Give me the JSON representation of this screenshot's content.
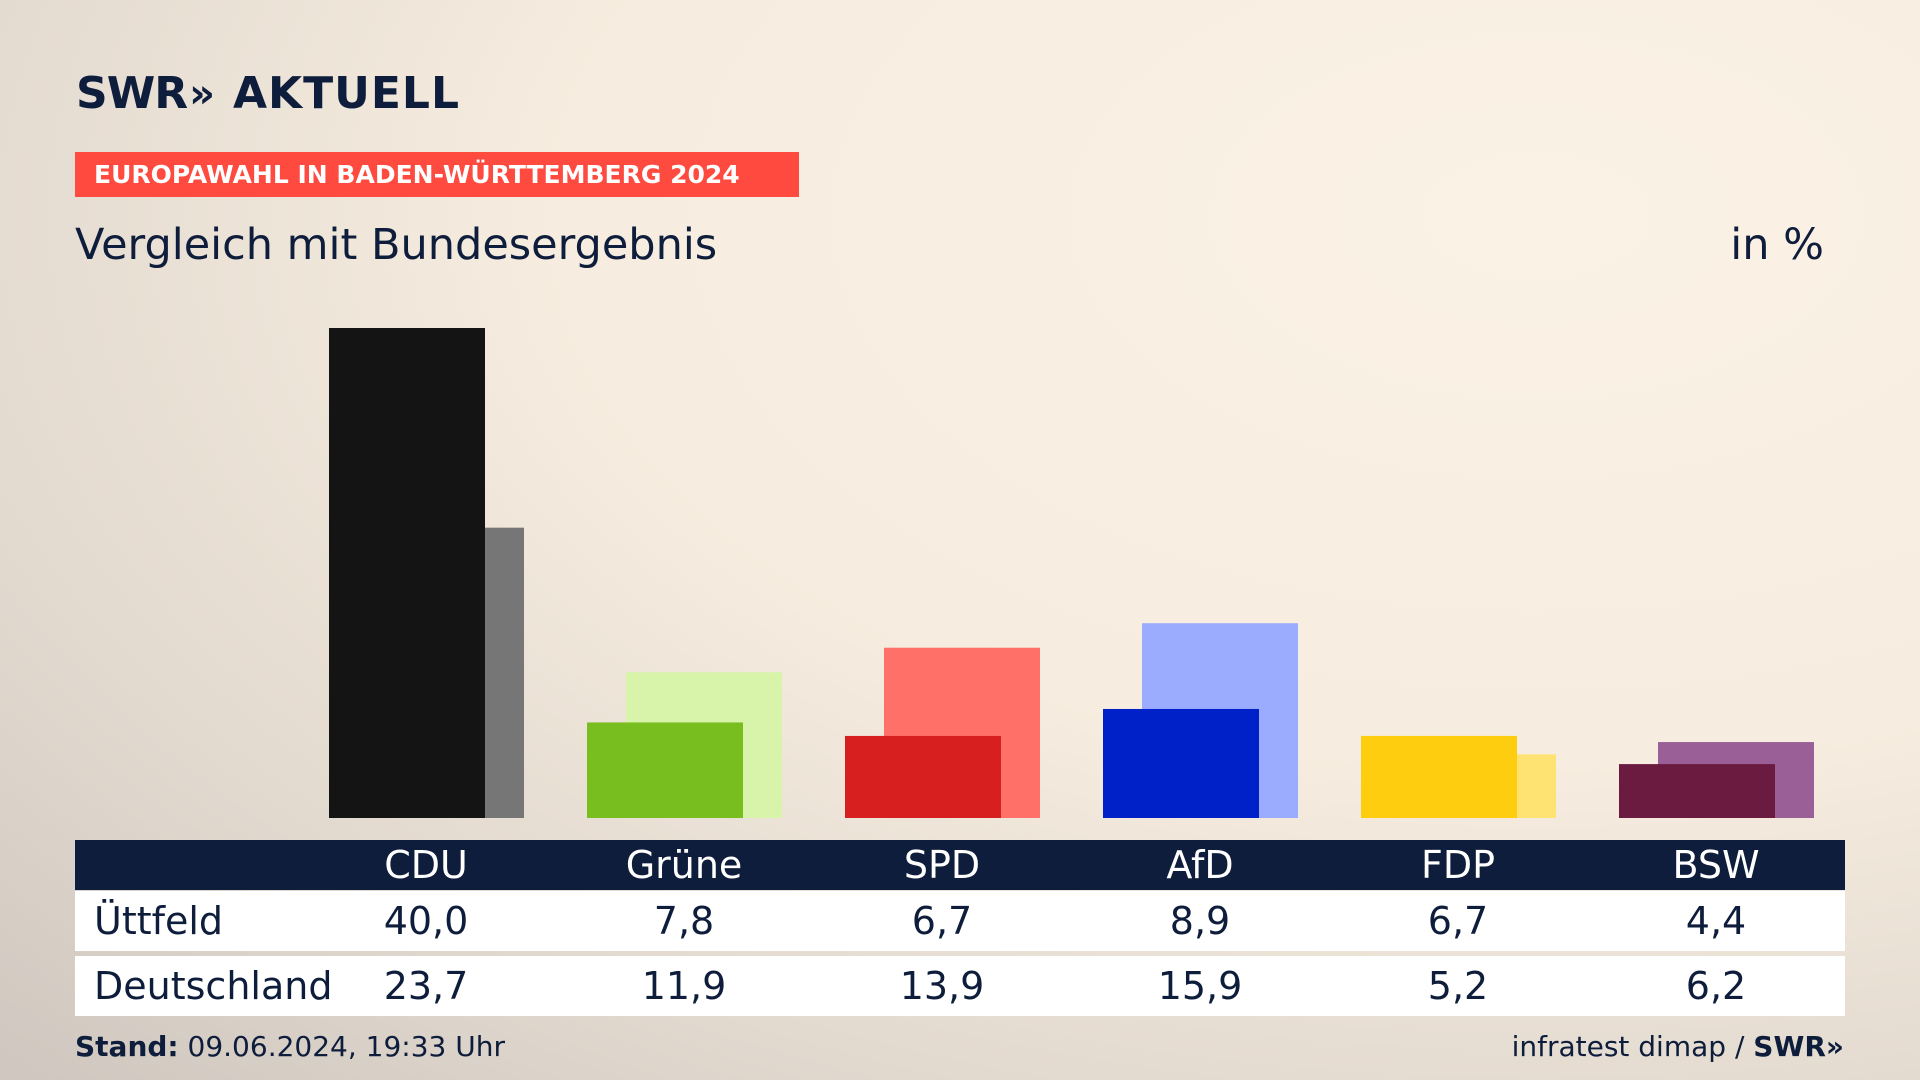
{
  "brand": {
    "name": "SWR",
    "arrows": "»",
    "product": "AKTUELL"
  },
  "banner": "EUROPAWAHL IN BADEN-WÜRTTEMBERG 2024",
  "subtitle": "Vergleich mit Bundesergebnis",
  "unit": "in %",
  "table": {
    "rows": [
      {
        "label": "Üttfeld",
        "values": [
          "40,0",
          "7,8",
          "6,7",
          "8,9",
          "6,7",
          "4,4"
        ]
      },
      {
        "label": "Deutschland",
        "values": [
          "23,7",
          "11,9",
          "13,9",
          "15,9",
          "5,2",
          "6,2"
        ]
      }
    ]
  },
  "footer": {
    "stand_label": "Stand:",
    "stand_value": "09.06.2024, 19:33 Uhr",
    "source": "infratest dimap /",
    "source_brand": "SWR»"
  },
  "chart_data": {
    "type": "bar",
    "categories": [
      "CDU",
      "Grüne",
      "SPD",
      "AfD",
      "FDP",
      "BSW"
    ],
    "series": [
      {
        "name": "Üttfeld",
        "values": [
          40.0,
          7.8,
          6.7,
          8.9,
          6.7,
          4.4
        ]
      },
      {
        "name": "Deutschland",
        "values": [
          23.7,
          11.9,
          13.9,
          15.9,
          5.2,
          6.2
        ]
      }
    ],
    "colors": {
      "primary": [
        "#141414",
        "#78be1e",
        "#d71f20",
        "#0021c8",
        "#ffcd0f",
        "#6b1a40"
      ],
      "secondary": [
        "#767676",
        "#d8f4aa",
        "#ff7069",
        "#9bacfe",
        "#ffe372",
        "#9a5f97"
      ]
    },
    "ylim": [
      0,
      40
    ],
    "grid": false,
    "legend": "none"
  }
}
